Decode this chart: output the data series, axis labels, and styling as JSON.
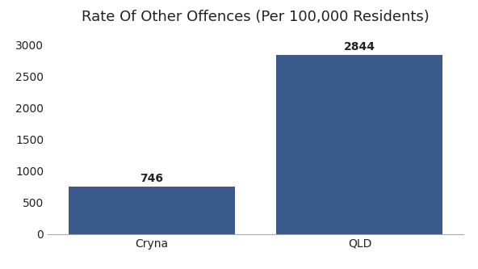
{
  "categories": [
    "Cryna",
    "QLD"
  ],
  "values": [
    746,
    2844
  ],
  "bar_colors": [
    "#3a5a8c",
    "#3a5a8c"
  ],
  "title": "Rate Of Other Offences (Per 100,000 Residents)",
  "title_fontsize": 13,
  "bar_labels": [
    "746",
    "2844"
  ],
  "ylim": [
    0,
    3200
  ],
  "yticks": [
    0,
    500,
    1000,
    1500,
    2000,
    2500,
    3000
  ],
  "background_color": "#ffffff",
  "tick_fontsize": 10,
  "bar_label_fontsize": 10,
  "bar_width": 0.4
}
